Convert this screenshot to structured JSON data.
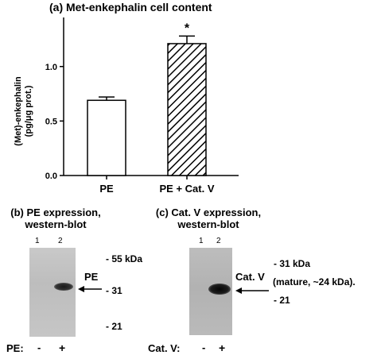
{
  "panel_a": {
    "title": "(a) Met-enkephalin cell content",
    "ylabel_line1": "(Met)-enkephalin",
    "ylabel_line2": "(pg/μg prot.)"
  },
  "chart_data": {
    "type": "bar",
    "categories": [
      "PE",
      "PE + Cat. V"
    ],
    "values": [
      0.69,
      1.21
    ],
    "errors": [
      0.03,
      0.07
    ],
    "patterns": [
      "white",
      "diagonal-hatch"
    ],
    "significance": [
      "",
      "*"
    ],
    "ylim": [
      0,
      1.45
    ],
    "yticks": [
      0.0,
      0.5,
      1.0
    ],
    "ytick_labels": [
      "0.0",
      "0.5",
      "1.0"
    ],
    "title": "(a) Met-enkephalin cell content",
    "xlabel": "",
    "ylabel": "(Met)-enkephalin (pg/μg prot.)",
    "grid": false
  },
  "panel_b": {
    "title_line1": "(b) PE expression,",
    "title_line2": "western-blot",
    "lane1": "1",
    "lane2": "2",
    "marker_55": "- 55 kDa",
    "marker_31": "- 31",
    "marker_21": "- 21",
    "band_label": "PE",
    "row_label": "PE:",
    "minus": "-",
    "plus": "+"
  },
  "panel_c": {
    "title_line1": "(c) Cat. V expression,",
    "title_line2": "western-blot",
    "lane1": "1",
    "lane2": "2",
    "marker_31": "- 31 kDa",
    "mature_note": "(mature, ~24 kDa).",
    "marker_21": "- 21",
    "band_label": "Cat. V",
    "row_label": "Cat. V:",
    "minus": "-",
    "plus": "+"
  }
}
